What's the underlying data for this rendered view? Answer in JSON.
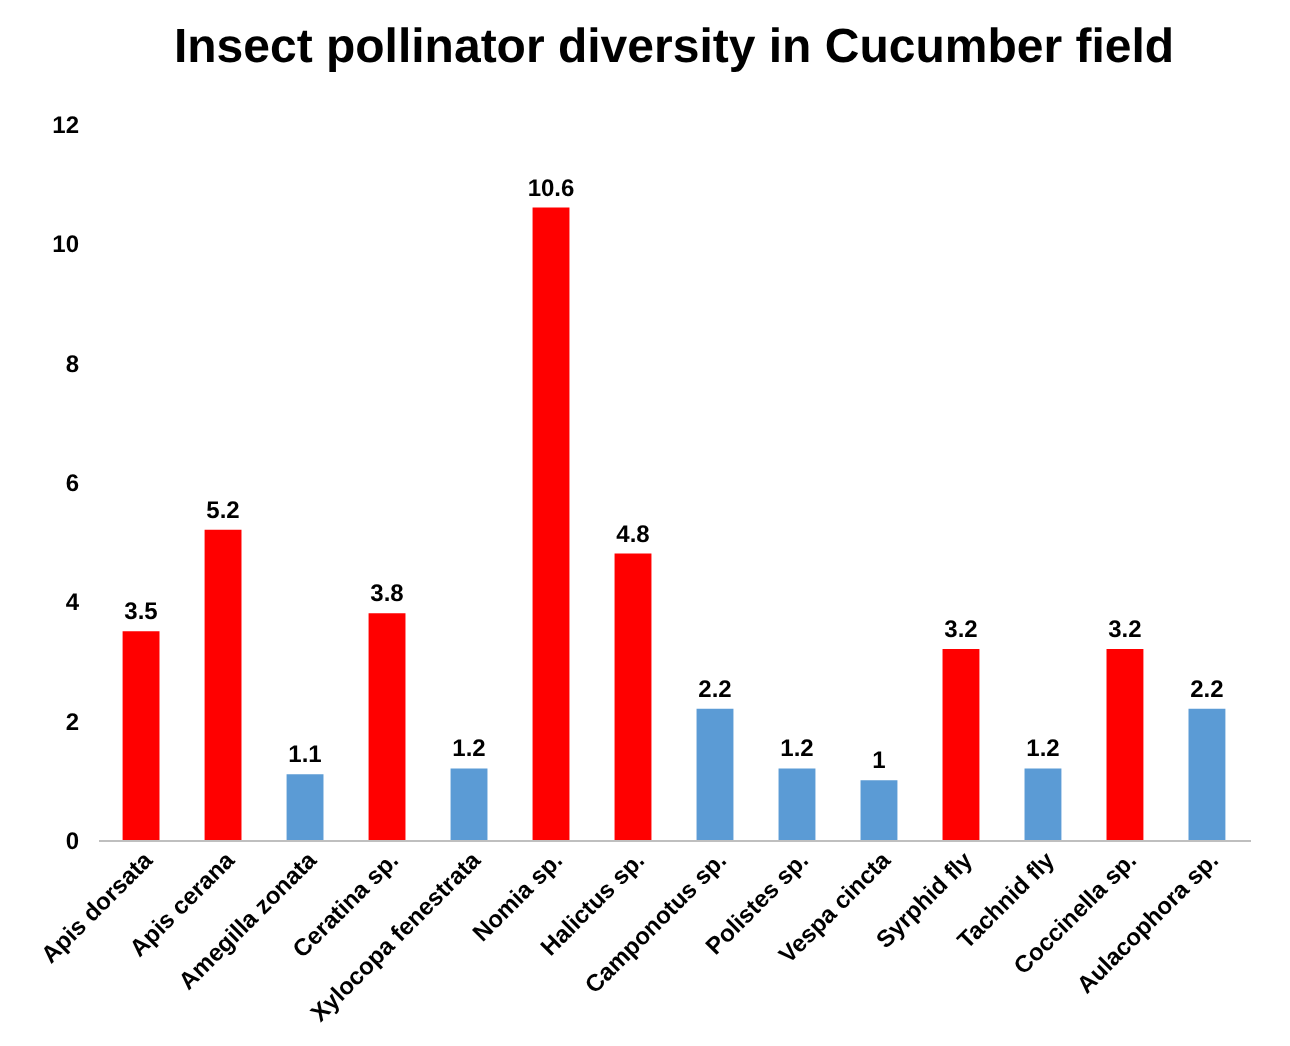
{
  "chart_data": {
    "type": "bar",
    "title": "Insect pollinator diversity in Cucumber field",
    "categories": [
      "Apis dorsata",
      "Apis cerana",
      "Amegilla zonata",
      "Ceratina sp.",
      "Xylocopa fenestrata",
      "Nomia sp.",
      "Halictus sp.",
      "Camponotus sp.",
      "Polistes sp.",
      "Vespa cincta",
      "Syrphid fly",
      "Tachnid fly",
      "Coccinella sp.",
      "Aulacophora sp."
    ],
    "values": [
      3.5,
      5.2,
      1.1,
      3.8,
      1.2,
      10.6,
      4.8,
      2.2,
      1.2,
      1,
      3.2,
      1.2,
      3.2,
      2.2
    ],
    "colors": [
      "#ff0000",
      "#ff0000",
      "#5b9bd5",
      "#ff0000",
      "#5b9bd5",
      "#ff0000",
      "#ff0000",
      "#5b9bd5",
      "#5b9bd5",
      "#5b9bd5",
      "#ff0000",
      "#5b9bd5",
      "#ff0000",
      "#5b9bd5"
    ],
    "ylim": [
      0,
      12
    ],
    "yticks": [
      0,
      2,
      4,
      6,
      8,
      10,
      12
    ],
    "data_labels": true
  }
}
